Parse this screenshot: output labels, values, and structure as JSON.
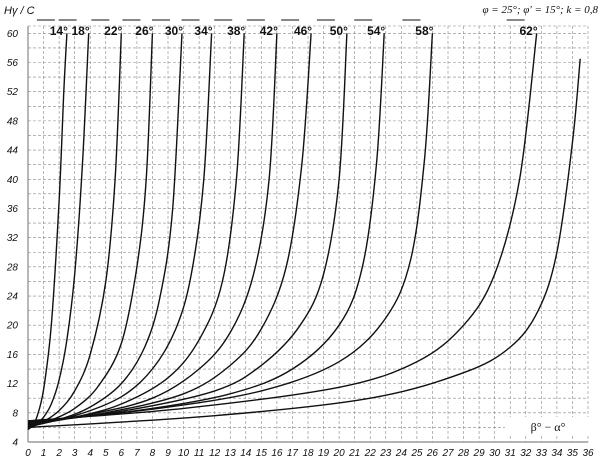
{
  "chart_data": {
    "type": "line",
    "title": "",
    "ylabel": "Hγ / C",
    "xlabel": "β° − α°",
    "params_text": "φ = 25°; φ' = 15°; k = 0,8",
    "xlim": [
      0,
      36
    ],
    "ylim": [
      4,
      61
    ],
    "x_ticks": [
      "0",
      "1",
      "2",
      "3",
      "4",
      "5",
      "6",
      "7",
      "8",
      "9",
      "10",
      "11",
      "12",
      "13",
      "14",
      "15",
      "16",
      "17",
      "18",
      "19",
      "20",
      "21",
      "22",
      "23",
      "24",
      "25",
      "26",
      "27",
      "28",
      "29",
      "30",
      "31",
      "32",
      "33",
      "34",
      "35",
      "36"
    ],
    "y_ticks": [
      "4",
      "8",
      "12",
      "16",
      "20",
      "24",
      "28",
      "32",
      "36",
      "40",
      "44",
      "48",
      "52",
      "56",
      "60"
    ],
    "grid": true,
    "series": [
      {
        "name": "14°",
        "x": [
          0,
          0.3,
          0.6,
          1.0,
          1.5,
          2.0,
          2.3,
          2.5
        ],
        "y": [
          5.7,
          6.3,
          7.6,
          11.2,
          20,
          37,
          52,
          60
        ]
      },
      {
        "name": "18°",
        "x": [
          0,
          0.5,
          1.0,
          1.5,
          2.0,
          2.5,
          3.0,
          3.5,
          3.9
        ],
        "y": [
          5.8,
          6.4,
          7.4,
          9.2,
          12.5,
          18,
          27,
          42,
          60
        ]
      },
      {
        "name": "22°",
        "x": [
          0,
          1.0,
          2.0,
          3.0,
          4.0,
          5.0,
          5.6,
          6.0
        ],
        "y": [
          5.9,
          6.8,
          8.3,
          11.0,
          16.0,
          26.0,
          40.0,
          60
        ]
      },
      {
        "name": "26°",
        "x": [
          0,
          1.5,
          3.0,
          4.5,
          6.0,
          7.0,
          7.6,
          8.0
        ],
        "y": [
          6.0,
          7.0,
          8.6,
          11.6,
          17.5,
          28.0,
          40.0,
          60
        ]
      },
      {
        "name": "30°",
        "x": [
          0,
          2.0,
          4.0,
          6.0,
          7.5,
          8.5,
          9.3,
          9.9
        ],
        "y": [
          6.1,
          7.1,
          8.8,
          12.0,
          17.0,
          24.0,
          36.0,
          60
        ]
      },
      {
        "name": "34°",
        "x": [
          0,
          3.0,
          6.0,
          8.0,
          9.5,
          10.5,
          11.3,
          11.8
        ],
        "y": [
          6.2,
          7.6,
          10.2,
          14.0,
          19.5,
          27.0,
          40.0,
          60
        ]
      },
      {
        "name": "38°",
        "x": [
          0,
          3.0,
          6.0,
          9.0,
          11.0,
          12.5,
          13.4,
          13.9
        ],
        "y": [
          6.3,
          7.4,
          9.2,
          12.8,
          18.0,
          26.0,
          40.0,
          60
        ]
      },
      {
        "name": "42°",
        "x": [
          0,
          4.0,
          8.0,
          11.0,
          13.0,
          14.5,
          15.5,
          16.0
        ],
        "y": [
          6.4,
          7.8,
          10.0,
          14.0,
          19.0,
          27.0,
          40.0,
          60
        ]
      },
      {
        "name": "46°",
        "x": [
          0,
          5.0,
          10.0,
          13.0,
          15.0,
          16.6,
          17.6,
          18.2
        ],
        "y": [
          6.5,
          8.0,
          10.6,
          14.5,
          19.5,
          28.0,
          42.0,
          60
        ]
      },
      {
        "name": "50°",
        "x": [
          0,
          6.0,
          12.0,
          15.0,
          17.5,
          19.0,
          20.0,
          20.5
        ],
        "y": [
          6.6,
          8.2,
          11.0,
          14.5,
          20.0,
          27.0,
          40.0,
          60
        ]
      },
      {
        "name": "54°",
        "x": [
          0,
          7.0,
          13.0,
          17.0,
          20.0,
          21.5,
          22.4,
          22.9
        ],
        "y": [
          6.7,
          8.3,
          10.6,
          14.0,
          20.0,
          28.0,
          42.0,
          60
        ]
      },
      {
        "name": "58°",
        "x": [
          0,
          8.0,
          15.0,
          20.0,
          23.0,
          24.6,
          25.5,
          26.0
        ],
        "y": [
          6.8,
          8.5,
          11.0,
          15.0,
          21.0,
          29.0,
          43.0,
          60
        ]
      },
      {
        "name": "62°",
        "x": [
          0,
          10.0,
          20.0,
          25.0,
          28.0,
          30.0,
          31.6,
          32.7
        ],
        "y": [
          6.9,
          8.6,
          11.5,
          15.0,
          20.0,
          27.0,
          40.0,
          60
        ]
      },
      {
        "name": "",
        "x": [
          0,
          12.0,
          22.0,
          28.0,
          31.0,
          32.8,
          34.0,
          35.0,
          35.5
        ],
        "y": [
          6.0,
          7.6,
          10.0,
          13.5,
          17.0,
          22.0,
          30.0,
          45.0,
          56.5
        ]
      }
    ]
  }
}
